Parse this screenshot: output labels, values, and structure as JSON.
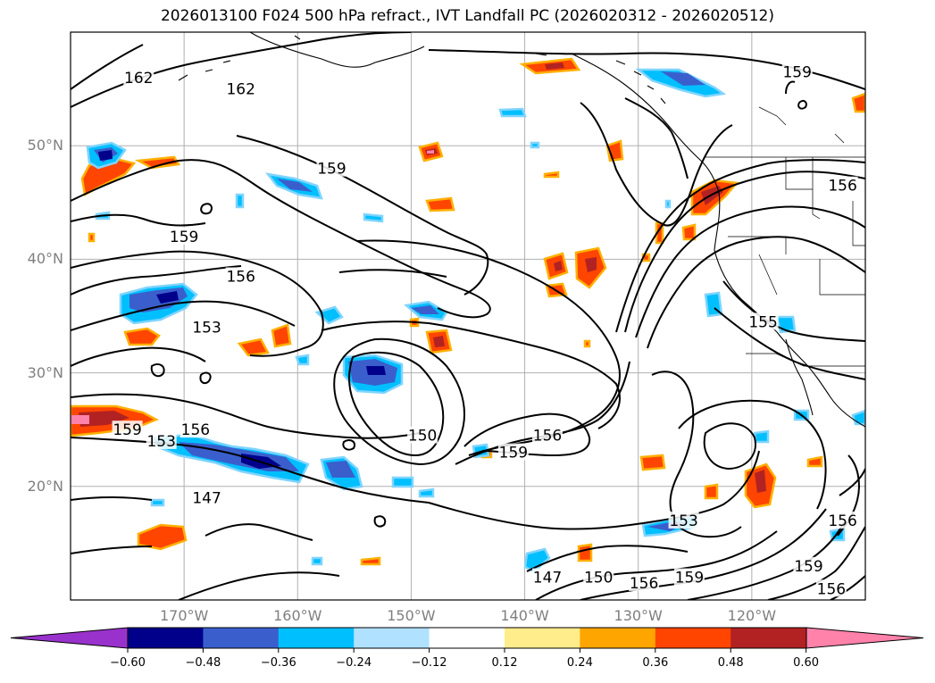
{
  "title": "2026013100 F024 500 hPa refract., IVT Landfall PC (2026020312 - 2026020512)",
  "map": {
    "lon_range": [
      -180,
      -110
    ],
    "lat_range": [
      10,
      60
    ],
    "lat_ticks": [
      {
        "value": 50,
        "label": "50°N"
      },
      {
        "value": 40,
        "label": "40°N"
      },
      {
        "value": 30,
        "label": "30°N"
      },
      {
        "value": 20,
        "label": "20°N"
      }
    ],
    "lon_ticks": [
      {
        "value": -170,
        "label": "170°W"
      },
      {
        "value": -160,
        "label": "160°W"
      },
      {
        "value": -150,
        "label": "150°W"
      },
      {
        "value": -140,
        "label": "140°W"
      },
      {
        "value": -130,
        "label": "130°W"
      },
      {
        "value": -120,
        "label": "120°W"
      }
    ],
    "grid": true,
    "contour_labels": [
      {
        "text": "162",
        "lon": -174,
        "lat": 56
      },
      {
        "text": "162",
        "lon": -165,
        "lat": 55
      },
      {
        "text": "159",
        "lon": -116,
        "lat": 56.5
      },
      {
        "text": "159",
        "lon": -157,
        "lat": 48
      },
      {
        "text": "159",
        "lon": -170,
        "lat": 42
      },
      {
        "text": "156",
        "lon": -165,
        "lat": 38.5
      },
      {
        "text": "156",
        "lon": -112,
        "lat": 46.5
      },
      {
        "text": "153",
        "lon": -168,
        "lat": 34
      },
      {
        "text": "155",
        "lon": -119,
        "lat": 34.5
      },
      {
        "text": "159",
        "lon": -175,
        "lat": 25
      },
      {
        "text": "153",
        "lon": -172,
        "lat": 24
      },
      {
        "text": "156",
        "lon": -169,
        "lat": 25
      },
      {
        "text": "147",
        "lon": -168,
        "lat": 19
      },
      {
        "text": "150",
        "lon": -149,
        "lat": 24.5
      },
      {
        "text": "159",
        "lon": -141,
        "lat": 23
      },
      {
        "text": "156",
        "lon": -138,
        "lat": 24.5
      },
      {
        "text": "153",
        "lon": -126,
        "lat": 17
      },
      {
        "text": "147",
        "lon": -138,
        "lat": 12
      },
      {
        "text": "150",
        "lon": -133.5,
        "lat": 12
      },
      {
        "text": "156",
        "lon": -129.5,
        "lat": 11.5
      },
      {
        "text": "159",
        "lon": -125.5,
        "lat": 12
      },
      {
        "text": "159",
        "lon": -115,
        "lat": 13
      },
      {
        "text": "156",
        "lon": -113,
        "lat": 11
      },
      {
        "text": "156",
        "lon": -112,
        "lat": 17
      }
    ]
  },
  "colorbar": {
    "colors": [
      "#9932CC",
      "#00008B",
      "#3A5FCD",
      "#00BFFF",
      "#B0E2FF",
      "#FFFFFF",
      "#FFEC8B",
      "#FFA500",
      "#FF4500",
      "#B22222",
      "#FF82AB"
    ],
    "tick_labels": [
      "−0.60",
      "−0.48",
      "−0.36",
      "−0.24",
      "−0.12",
      "0.12",
      "0.24",
      "0.36",
      "0.48",
      "0.60"
    ]
  }
}
